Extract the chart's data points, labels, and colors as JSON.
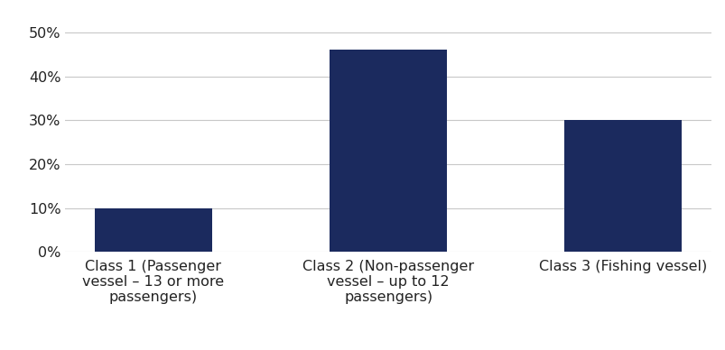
{
  "categories": [
    "Class 1 (Passenger\nvessel – 13 or more\npassengers)",
    "Class 2 (Non-passenger\nvessel – up to 12\npassengers)",
    "Class 3 (Fishing vessel)"
  ],
  "values": [
    0.1,
    0.46,
    0.3
  ],
  "bar_color": "#1b2a5e",
  "ylim": [
    0,
    0.55
  ],
  "yticks": [
    0.0,
    0.1,
    0.2,
    0.3,
    0.4,
    0.5
  ],
  "background_color": "#ffffff",
  "grid_color": "#c8c8c8",
  "tick_label_fontsize": 11.5,
  "axis_label_color": "#222222",
  "bar_width": 0.5
}
